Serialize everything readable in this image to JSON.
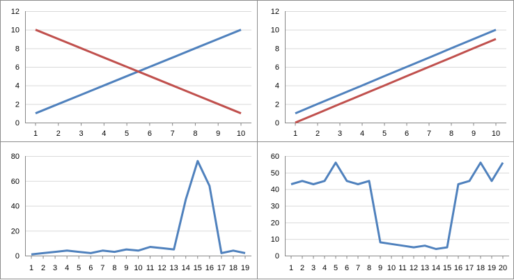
{
  "chart_data": [
    {
      "type": "line",
      "x": [
        1,
        2,
        3,
        4,
        5,
        6,
        7,
        8,
        9,
        10
      ],
      "ylim": [
        0,
        12
      ],
      "yticks": [
        0,
        2,
        4,
        6,
        8,
        10,
        12
      ],
      "grid": "horizontal",
      "legend": "none",
      "series": [
        {
          "color": "#4f81bd",
          "values": [
            1,
            2,
            3,
            4,
            5,
            6,
            7,
            8,
            9,
            10
          ]
        },
        {
          "color": "#c0504d",
          "values": [
            10,
            9,
            8,
            7,
            6,
            5,
            4,
            3,
            2,
            1
          ]
        }
      ]
    },
    {
      "type": "line",
      "x": [
        1,
        2,
        3,
        4,
        5,
        6,
        7,
        8,
        9,
        10
      ],
      "ylim": [
        0,
        12
      ],
      "yticks": [
        0,
        2,
        4,
        6,
        8,
        10,
        12
      ],
      "grid": "horizontal",
      "legend": "none",
      "series": [
        {
          "color": "#4f81bd",
          "values": [
            1,
            2,
            3,
            4,
            5,
            6,
            7,
            8,
            9,
            10
          ]
        },
        {
          "color": "#c0504d",
          "values": [
            0,
            1,
            2,
            3,
            4,
            5,
            6,
            7,
            8,
            9
          ]
        }
      ]
    },
    {
      "type": "line",
      "x": [
        1,
        2,
        3,
        4,
        5,
        6,
        7,
        8,
        9,
        10,
        11,
        12,
        13,
        14,
        15,
        16,
        17,
        18,
        19
      ],
      "ylim": [
        0,
        80
      ],
      "yticks": [
        0,
        20,
        40,
        60,
        80
      ],
      "grid": "horizontal",
      "legend": "none",
      "series": [
        {
          "color": "#4f81bd",
          "values": [
            1,
            2,
            3,
            4,
            3,
            2,
            4,
            3,
            5,
            4,
            7,
            6,
            5,
            45,
            76,
            56,
            2,
            4,
            2
          ]
        }
      ]
    },
    {
      "type": "line",
      "x": [
        1,
        2,
        3,
        4,
        5,
        6,
        7,
        8,
        9,
        10,
        11,
        12,
        13,
        14,
        15,
        16,
        17,
        18,
        19,
        20
      ],
      "ylim": [
        0,
        60
      ],
      "yticks": [
        0,
        10,
        20,
        30,
        40,
        50,
        60
      ],
      "grid": "horizontal",
      "legend": "none",
      "series": [
        {
          "color": "#4f81bd",
          "values": [
            43,
            45,
            43,
            45,
            56,
            45,
            43,
            45,
            8,
            7,
            6,
            5,
            6,
            4,
            5,
            43,
            45,
            56,
            45,
            56
          ]
        }
      ]
    }
  ]
}
